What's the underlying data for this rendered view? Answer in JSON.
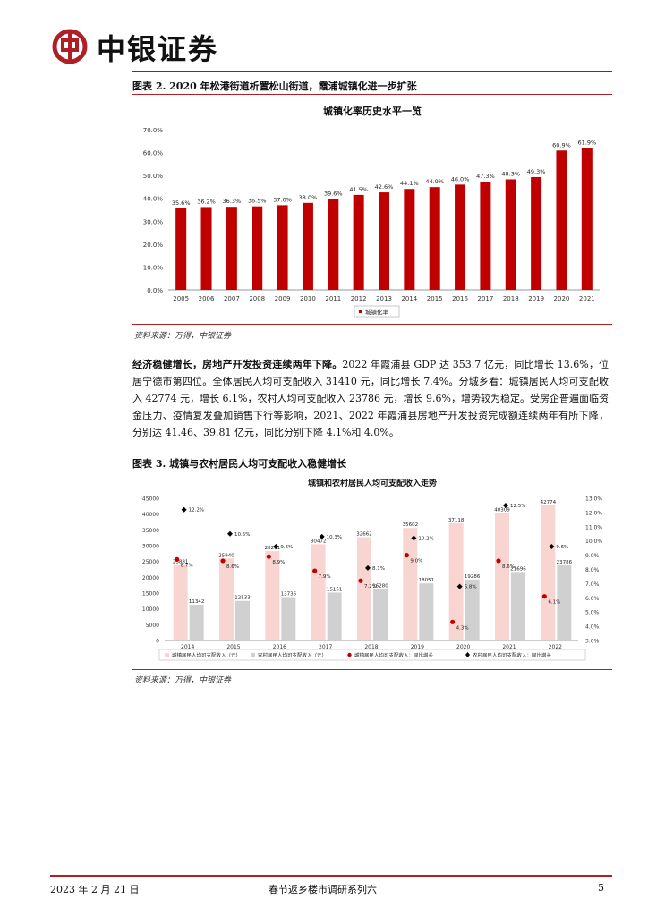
{
  "header": {
    "brand": "中银证券"
  },
  "figure2": {
    "title": "图表 2. 2020 年松港街道析置松山街道，霞浦城镇化进一步扩张",
    "source": "资料来源：万得，中银证券"
  },
  "paragraph": {
    "lead": "经济稳健增长，房地产开发投资连续两年下降。",
    "body": "2022 年霞浦县 GDP 达 353.7 亿元，同比增长 13.6%，位居宁德市第四位。全体居民人均可支配收入 31410 元，同比增长 7.4%。分城乡看：城镇居民人均可支配收入 42774 元，增长 6.1%，农村人均可支配收入 23786 元，增长 9.6%，增势较为稳定。受房企普遍面临资金压力、疫情复发叠加销售下行等影响，2021、2022 年霞浦县房地产开发投资完成额连续两年有所下降，分别达 41.46、39.81 亿元，同比分别下降 4.1%和 4.0%。"
  },
  "figure3": {
    "title": "图表 3. 城镇与农村居民人均可支配收入稳健增长",
    "source": "资料来源：万得，中银证券"
  },
  "footer": {
    "date": "2023 年 2 月 21 日",
    "series": "春节返乡楼市调研系列六",
    "page": "5"
  },
  "chart_data": [
    {
      "type": "bar",
      "title": "城镇化率历史水平一览",
      "categories": [
        "2005",
        "2006",
        "2007",
        "2008",
        "2009",
        "2010",
        "2011",
        "2012",
        "2013",
        "2014",
        "2015",
        "2016",
        "2017",
        "2018",
        "2019",
        "2020",
        "2021"
      ],
      "series": [
        {
          "name": "城镇化率",
          "values": [
            35.6,
            36.2,
            36.3,
            36.5,
            37.0,
            38.0,
            39.6,
            41.5,
            42.6,
            44.1,
            44.9,
            46.0,
            47.3,
            48.3,
            49.3,
            60.9,
            61.9
          ]
        }
      ],
      "value_labels": [
        "35.6%",
        "36.2%",
        "36.3%",
        "36.5%",
        "37.0%",
        "38.0%",
        "39.6%",
        "41.5%",
        "42.6%",
        "44.1%",
        "44.9%",
        "46.0%",
        "47.3%",
        "48.3%",
        "49.3%",
        "60.9%",
        "61.9%"
      ],
      "ylim": [
        0,
        70
      ],
      "yticks": [
        "0.0%",
        "10.0%",
        "20.0%",
        "30.0%",
        "40.0%",
        "50.0%",
        "60.0%",
        "70.0%"
      ],
      "legend": "bottom",
      "grid": false,
      "color": "#c00000"
    },
    {
      "type": "bar",
      "title": "城镇和农村居民人均可支配收入走势",
      "categories": [
        "2014",
        "2015",
        "2016",
        "2017",
        "2018",
        "2019",
        "2020",
        "2021",
        "2022"
      ],
      "series": [
        {
          "name": "城镇居民人均可支配收入（元）",
          "axis": "left",
          "values": [
            23881,
            25940,
            28261,
            30472,
            32662,
            35602,
            37118,
            40309,
            42774
          ],
          "labels": [
            "23881",
            "25940",
            "28261",
            "30472",
            "32662",
            "35602",
            "37118",
            "40309",
            "42774"
          ],
          "color": "#f8d5d0"
        },
        {
          "name": "农村居民人均可支配收入（元）",
          "axis": "left",
          "values": [
            11342,
            12533,
            13736,
            15151,
            16280,
            18051,
            19286,
            21696,
            23786
          ],
          "labels": [
            "11342",
            "12533",
            "13736",
            "15151",
            "16280",
            "18051",
            "19286",
            "21696",
            "23786"
          ],
          "color": "#d0d0d0"
        },
        {
          "name": "城镇居民人均可支配收入：同比增长",
          "axis": "right",
          "type": "scatter",
          "values": [
            8.7,
            8.6,
            8.9,
            7.9,
            7.2,
            9.0,
            4.3,
            8.6,
            6.1
          ],
          "labels": [
            "8.7%",
            "8.6%",
            "8.9%",
            "7.9%",
            "7.2%",
            "9.0%",
            "4.3%",
            "8.6%",
            "6.1%"
          ],
          "color": "#c00000"
        },
        {
          "name": "农村居民人均可支配收入：同比增长",
          "axis": "right",
          "type": "scatter",
          "values": [
            12.2,
            10.5,
            9.6,
            10.3,
            8.1,
            10.2,
            6.8,
            12.5,
            9.6
          ],
          "labels": [
            "12.2%",
            "10.5%",
            "9.6%",
            "10.3%",
            "8.1%",
            "10.2%",
            "6.8%",
            "12.5%",
            "9.6%"
          ],
          "color": "#000000"
        }
      ],
      "ylim": [
        0,
        45000
      ],
      "yticks": [
        "0",
        "5000",
        "10000",
        "15000",
        "20000",
        "25000",
        "30000",
        "35000",
        "40000",
        "45000"
      ],
      "y2lim": [
        3.0,
        13.0
      ],
      "y2ticks": [
        "3.0%",
        "4.0%",
        "5.0%",
        "6.0%",
        "7.0%",
        "8.0%",
        "9.0%",
        "10.0%",
        "11.0%",
        "12.0%",
        "13.0%"
      ],
      "legend": "bottom",
      "grid": false
    }
  ]
}
